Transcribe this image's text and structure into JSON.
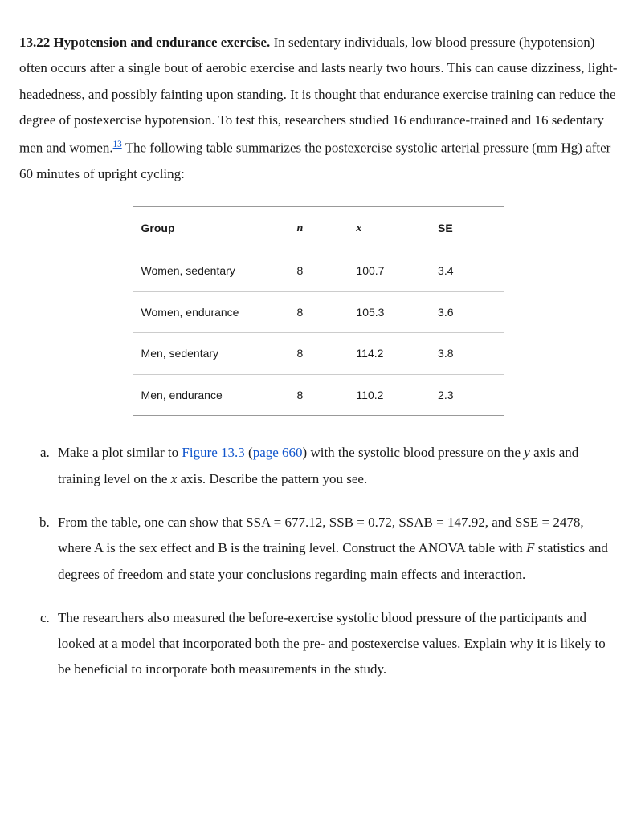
{
  "problem": {
    "number": "13.22",
    "title": "Hypotension and endurance exercise.",
    "intro_prefix": "In sedentary individuals, low blood pressure (hypotension) often occurs after a single bout of aerobic exercise and lasts nearly two hours. This can cause dizziness, light-headedness, and possibly fainting upon standing. It is thought that endurance exercise training can reduce the degree of postexercise hypotension. To test this, researchers studied 16 endurance-trained and 16 sedentary men and women.",
    "footnote": "13",
    "intro_suffix": " The following table summarizes the postexercise systolic arterial pressure (mm Hg) after 60 minutes of upright cycling:"
  },
  "table": {
    "headers": {
      "group": "Group",
      "n": "n",
      "xbar": "x",
      "se": "SE"
    },
    "rows": [
      {
        "group": "Women, sedentary",
        "n": "8",
        "xbar": "100.7",
        "se": "3.4"
      },
      {
        "group": "Women, endurance",
        "n": "8",
        "xbar": "105.3",
        "se": "3.6"
      },
      {
        "group": "Men, sedentary",
        "n": "8",
        "xbar": "114.2",
        "se": "3.8"
      },
      {
        "group": "Men, endurance",
        "n": "8",
        "xbar": "110.2",
        "se": "2.3"
      }
    ],
    "col_widths": [
      "42%",
      "16%",
      "22%",
      "20%"
    ]
  },
  "links": {
    "figure": "Figure 13.3",
    "page": "page 660"
  },
  "questions": {
    "a_pre": "Make a plot similar to ",
    "a_mid": " (",
    "a_post": ") with the systolic blood pressure on the y axis and training level on the x axis. Describe the pattern you see.",
    "b": "From the table, one can show that SSA = 677.12, SSB = 0.72, SSAB = 147.92, and SSE = 2478, where A is the sex effect and B is the training level. Construct the ANOVA table with F statistics and degrees of freedom and state your conclusions regarding main effects and interaction.",
    "c": "The researchers also measured the before-exercise systolic blood pressure of the participants and looked at a model that incorporated both the pre- and postexercise values. Explain why it is likely to be beneficial to incorporate both measurements in the study."
  }
}
